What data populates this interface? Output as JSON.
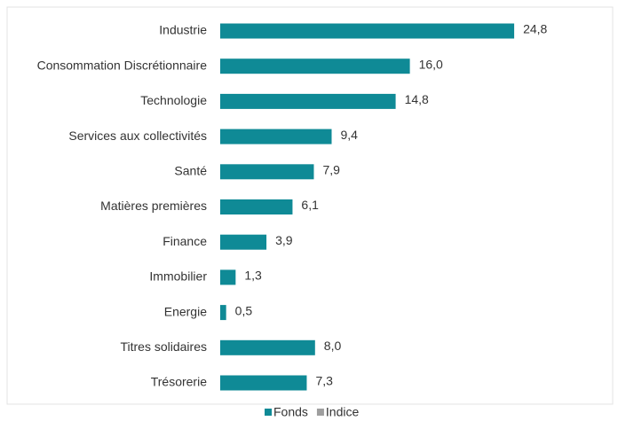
{
  "chart_data": {
    "type": "bar",
    "orientation": "horizontal",
    "categories": [
      "Industrie",
      "Consommation Discrétionnaire",
      "Technologie",
      "Services aux collectivités",
      "Santé",
      "Matières premières",
      "Finance",
      "Immobilier",
      "Energie",
      "Titres solidaires",
      "Trésorerie"
    ],
    "series": [
      {
        "name": "Fonds",
        "color": "#0f8a96",
        "values": [
          24.8,
          16.0,
          14.8,
          9.4,
          7.9,
          6.1,
          3.9,
          1.3,
          0.5,
          8.0,
          7.3
        ],
        "value_labels": [
          "24,8",
          "16,0",
          "14,8",
          "9,4",
          "7,9",
          "6,1",
          "3,9",
          "1,3",
          "0,5",
          "8,0",
          "7,3"
        ]
      },
      {
        "name": "Indice",
        "color": "#9e9e9e",
        "values": [
          null,
          null,
          null,
          null,
          null,
          null,
          null,
          null,
          null,
          null,
          null
        ]
      }
    ],
    "legend": "bottom"
  }
}
